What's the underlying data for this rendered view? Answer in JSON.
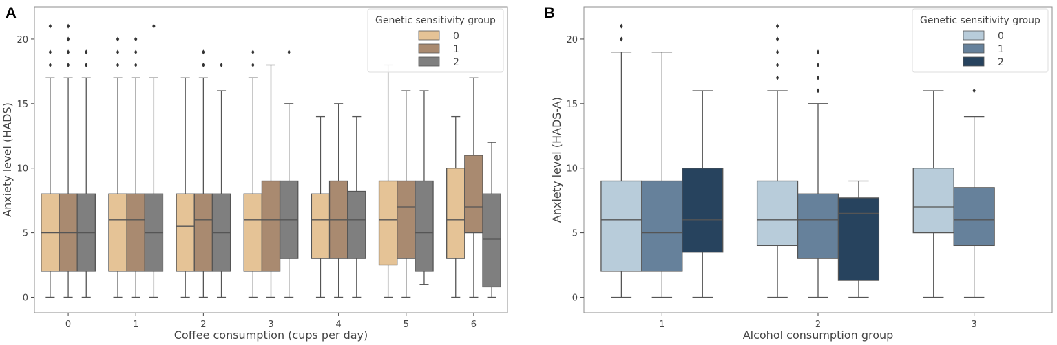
{
  "chart_data": [
    {
      "type": "boxplot",
      "panel_label": "A",
      "title": "",
      "xlabel": "Coffee consumption (cups per day)",
      "ylabel": "Anxiety level (HADS)",
      "categories": [
        "0",
        "1",
        "2",
        "3",
        "4",
        "5",
        "6"
      ],
      "ylim": [
        -1.2,
        22.5
      ],
      "yticks": [
        "0",
        "5",
        "10",
        "15",
        "20"
      ],
      "yticks_values": [
        0,
        5,
        10,
        15,
        20
      ],
      "grid": false,
      "legend": {
        "title": "Genetic sensitivity group",
        "position": "top-right"
      },
      "series": [
        {
          "name": "0",
          "color": "#e5c396",
          "boxes": [
            {
              "whislo": 0,
              "q1": 2,
              "med": 5,
              "q3": 8,
              "whishi": 17,
              "fliers": [
                18,
                19,
                21
              ]
            },
            {
              "whislo": 0,
              "q1": 2,
              "med": 6,
              "q3": 8,
              "whishi": 17,
              "fliers": [
                18,
                19,
                20
              ]
            },
            {
              "whislo": 0,
              "q1": 2,
              "med": 5.5,
              "q3": 8,
              "whishi": 17,
              "fliers": []
            },
            {
              "whislo": 0,
              "q1": 2,
              "med": 6,
              "q3": 8,
              "whishi": 17,
              "fliers": [
                18,
                19
              ]
            },
            {
              "whislo": 0,
              "q1": 3,
              "med": 6,
              "q3": 8,
              "whishi": 14,
              "fliers": []
            },
            {
              "whislo": 0,
              "q1": 2.5,
              "med": 6,
              "q3": 9,
              "whishi": 18,
              "fliers": []
            },
            {
              "whislo": 0,
              "q1": 3,
              "med": 6,
              "q3": 10,
              "whishi": 14,
              "fliers": []
            }
          ]
        },
        {
          "name": "1",
          "color": "#a98a70",
          "boxes": [
            {
              "whislo": 0,
              "q1": 2,
              "med": 5,
              "q3": 8,
              "whishi": 17,
              "fliers": [
                18,
                19,
                20,
                21
              ]
            },
            {
              "whislo": 0,
              "q1": 2,
              "med": 6,
              "q3": 8,
              "whishi": 17,
              "fliers": [
                18,
                19,
                20
              ]
            },
            {
              "whislo": 0,
              "q1": 2,
              "med": 6,
              "q3": 8,
              "whishi": 17,
              "fliers": [
                18,
                19
              ]
            },
            {
              "whislo": 0,
              "q1": 2,
              "med": 6,
              "q3": 9,
              "whishi": 18,
              "fliers": []
            },
            {
              "whislo": 0,
              "q1": 3,
              "med": 6,
              "q3": 9,
              "whishi": 15,
              "fliers": []
            },
            {
              "whislo": 0,
              "q1": 3,
              "med": 7,
              "q3": 9,
              "whishi": 16,
              "fliers": []
            },
            {
              "whislo": 0,
              "q1": 5,
              "med": 7,
              "q3": 11,
              "whishi": 17,
              "fliers": []
            }
          ]
        },
        {
          "name": "2",
          "color": "#7f7f7f",
          "boxes": [
            {
              "whislo": 0,
              "q1": 2,
              "med": 5,
              "q3": 8,
              "whishi": 17,
              "fliers": [
                18,
                19
              ]
            },
            {
              "whislo": 0,
              "q1": 2,
              "med": 5,
              "q3": 8,
              "whishi": 17,
              "fliers": [
                21
              ]
            },
            {
              "whislo": 0,
              "q1": 2,
              "med": 5,
              "q3": 8,
              "whishi": 16,
              "fliers": [
                18
              ]
            },
            {
              "whislo": 0,
              "q1": 3,
              "med": 6,
              "q3": 9,
              "whishi": 15,
              "fliers": [
                19
              ]
            },
            {
              "whislo": 0,
              "q1": 3,
              "med": 6,
              "q3": 8.2,
              "whishi": 14,
              "fliers": []
            },
            {
              "whislo": 1,
              "q1": 2,
              "med": 5,
              "q3": 9,
              "whishi": 16,
              "fliers": []
            },
            {
              "whislo": 0,
              "q1": 0.8,
              "med": 4.5,
              "q3": 8,
              "whishi": 12,
              "fliers": []
            }
          ]
        }
      ]
    },
    {
      "type": "boxplot",
      "panel_label": "B",
      "title": "",
      "xlabel": "Alcohol consumption group",
      "ylabel": "Anxiety level (HADS-A)",
      "categories": [
        "1",
        "2",
        "3"
      ],
      "ylim": [
        -1.2,
        22.5
      ],
      "yticks": [
        "0",
        "5",
        "10",
        "15",
        "20"
      ],
      "yticks_values": [
        0,
        5,
        10,
        15,
        20
      ],
      "grid": false,
      "legend": {
        "title": "Genetic sensitivity group",
        "position": "top-right"
      },
      "series": [
        {
          "name": "0",
          "color": "#b8ccda",
          "boxes": [
            {
              "whislo": 0,
              "q1": 2,
              "med": 6,
              "q3": 9,
              "whishi": 19,
              "fliers": [
                20,
                21
              ]
            },
            {
              "whislo": 0,
              "q1": 4,
              "med": 6,
              "q3": 9,
              "whishi": 16,
              "fliers": [
                17,
                18,
                19,
                20,
                21
              ]
            },
            {
              "whislo": 0,
              "q1": 5,
              "med": 7,
              "q3": 10,
              "whishi": 16,
              "fliers": []
            }
          ]
        },
        {
          "name": "1",
          "color": "#66819b",
          "boxes": [
            {
              "whislo": 0,
              "q1": 2,
              "med": 5,
              "q3": 9,
              "whishi": 19,
              "fliers": []
            },
            {
              "whislo": 0,
              "q1": 3,
              "med": 6,
              "q3": 8,
              "whishi": 15,
              "fliers": [
                16,
                17,
                18,
                19
              ]
            },
            {
              "whislo": 0,
              "q1": 4,
              "med": 6,
              "q3": 8.5,
              "whishi": 14,
              "fliers": [
                16
              ]
            }
          ]
        },
        {
          "name": "2",
          "color": "#27435e",
          "boxes": [
            {
              "whislo": 0,
              "q1": 3.5,
              "med": 6,
              "q3": 10,
              "whishi": 16,
              "fliers": []
            },
            {
              "whislo": 0,
              "q1": 1.3,
              "med": 6.5,
              "q3": 7.7,
              "whishi": 9,
              "fliers": []
            },
            null
          ]
        }
      ]
    }
  ]
}
